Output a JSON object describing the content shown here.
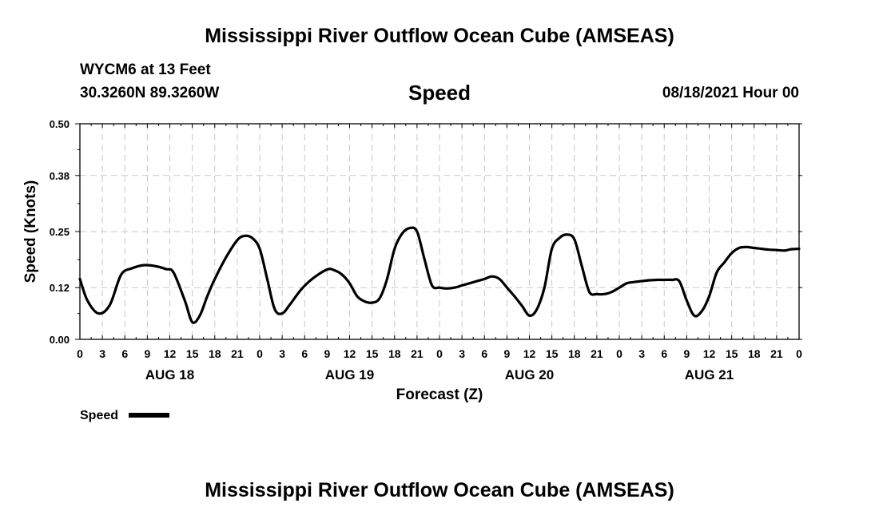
{
  "header": {
    "title_top": "Mississippi River Outflow Ocean Cube (AMSEAS)",
    "station": "WYCM6 at 13 Feet",
    "coords": "30.3260N  89.3260W",
    "subtitle": "Speed",
    "date": "08/18/2021 Hour 00",
    "title_bottom": "Mississippi River Outflow Ocean Cube (AMSEAS)"
  },
  "chart_data": {
    "type": "line",
    "title": "Speed",
    "xlabel": "Forecast (Z)",
    "ylabel": "Speed (Knots)",
    "xlim": [
      0,
      96
    ],
    "ylim": [
      0,
      0.5
    ],
    "yticks": [
      0.0,
      0.12,
      0.25,
      0.38,
      0.5
    ],
    "ytick_labels": [
      "0.00",
      "0.12",
      "0.25",
      "0.38",
      "0.50"
    ],
    "xtick_labels": [
      "0",
      "3",
      "6",
      "9",
      "12",
      "15",
      "18",
      "21",
      "0",
      "3",
      "6",
      "9",
      "12",
      "15",
      "18",
      "21",
      "0",
      "3",
      "6",
      "9",
      "12",
      "15",
      "18",
      "21",
      "0",
      "3",
      "6",
      "9",
      "12",
      "15",
      "18",
      "21",
      "0"
    ],
    "day_labels": [
      {
        "hour": 12,
        "label": "AUG 18"
      },
      {
        "hour": 36,
        "label": "AUG 19"
      },
      {
        "hour": 60,
        "label": "AUG 20"
      },
      {
        "hour": 84,
        "label": "AUG 21"
      }
    ],
    "grid": true,
    "series": [
      {
        "name": "Speed",
        "color": "#000000",
        "x": [
          0,
          1,
          2.5,
          4,
          5.5,
          7,
          8.5,
          10,
          11.5,
          12.5,
          14,
          15,
          16,
          17,
          18,
          19.5,
          21,
          22,
          23,
          24,
          25,
          26,
          27,
          28,
          29.5,
          31,
          33,
          34,
          35,
          36,
          37,
          38,
          39,
          40,
          41,
          42,
          43,
          44,
          45,
          46,
          47,
          48,
          49,
          50,
          51,
          52,
          53,
          54,
          55,
          56,
          57,
          58,
          59,
          60,
          61,
          62,
          63,
          64,
          65,
          66,
          67,
          68,
          69,
          70,
          71,
          72,
          73,
          74,
          75,
          76,
          77,
          78,
          79,
          80,
          81,
          82,
          83,
          84,
          85,
          86,
          87,
          88,
          89,
          90,
          91,
          92,
          93,
          94,
          95,
          96
        ],
        "y": [
          0.14,
          0.09,
          0.06,
          0.08,
          0.15,
          0.165,
          0.172,
          0.17,
          0.163,
          0.155,
          0.09,
          0.04,
          0.055,
          0.1,
          0.14,
          0.19,
          0.23,
          0.24,
          0.235,
          0.21,
          0.14,
          0.07,
          0.06,
          0.08,
          0.115,
          0.14,
          0.162,
          0.16,
          0.15,
          0.13,
          0.1,
          0.088,
          0.085,
          0.095,
          0.14,
          0.21,
          0.245,
          0.258,
          0.25,
          0.185,
          0.125,
          0.12,
          0.118,
          0.12,
          0.125,
          0.13,
          0.135,
          0.14,
          0.146,
          0.14,
          0.12,
          0.1,
          0.078,
          0.055,
          0.07,
          0.12,
          0.21,
          0.235,
          0.243,
          0.232,
          0.17,
          0.11,
          0.105,
          0.105,
          0.11,
          0.12,
          0.13,
          0.133,
          0.135,
          0.137,
          0.138,
          0.138,
          0.138,
          0.135,
          0.09,
          0.055,
          0.065,
          0.1,
          0.155,
          0.178,
          0.2,
          0.212,
          0.214,
          0.212,
          0.21,
          0.208,
          0.207,
          0.206,
          0.209,
          0.21
        ]
      }
    ]
  }
}
